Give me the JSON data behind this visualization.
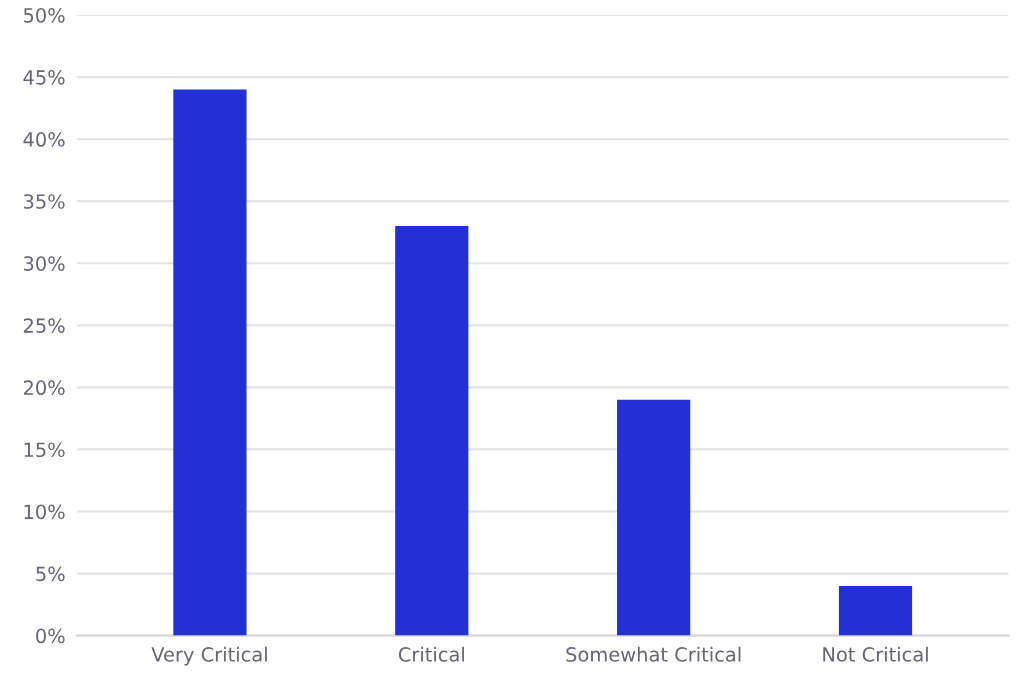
{
  "chart_data": {
    "type": "bar",
    "categories": [
      "Very Critical",
      "Critical",
      "Somewhat Critical",
      "Not Critical"
    ],
    "values": [
      44,
      33,
      19,
      4
    ],
    "color": "#2230d4",
    "ylim": [
      0,
      50
    ],
    "yticks": [
      {
        "value": 0,
        "label": "0%"
      },
      {
        "value": 5,
        "label": "5%"
      },
      {
        "value": 10,
        "label": "10%"
      },
      {
        "value": 15,
        "label": "15%"
      },
      {
        "value": 20,
        "label": "20%"
      },
      {
        "value": 25,
        "label": "25%"
      },
      {
        "value": 30,
        "label": "30%"
      },
      {
        "value": 35,
        "label": "35%"
      },
      {
        "value": 40,
        "label": "40%"
      },
      {
        "value": 45,
        "label": "45%"
      },
      {
        "value": 50,
        "label": "50%"
      }
    ],
    "grid": "y"
  }
}
